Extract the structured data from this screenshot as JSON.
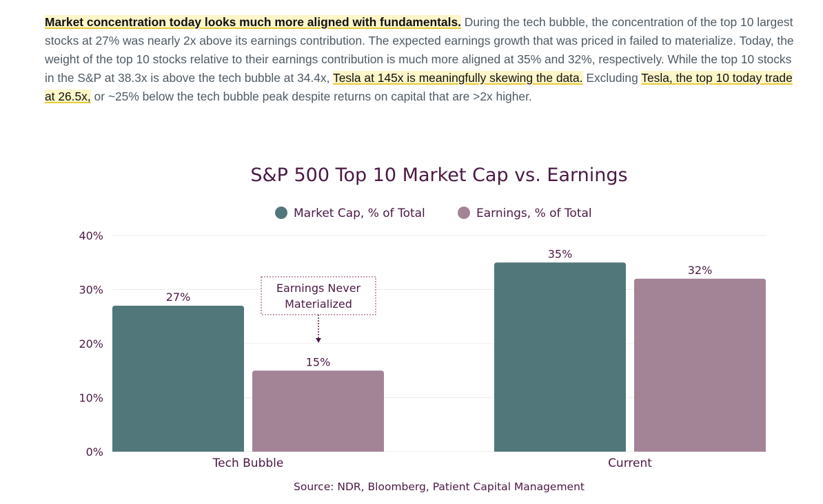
{
  "article": {
    "lead_bold": "Market concentration today looks much more aligned with fundamentals.",
    "text_1": " During the tech bubble, the concentration of the top 10 largest stocks at 27% was nearly 2x above its earnings contribution. The expected earnings growth that was priced in failed to materialize. Today, the weight of the top 10 stocks relative to their earnings contribution is much more aligned at 35% and 32%, respectively. While the top 10 stocks in the S&P at 38.3x is above the tech bubble at 34.4x, ",
    "highlight_1": "Tesla at 145x is meaningfully skewing the data.",
    "text_2": " Excluding ",
    "highlight_2": "Tesla, the top 10 today trade at 26.5x,",
    "text_3": " or ~25% below the tech bubble peak despite returns on capital that are >2x higher."
  },
  "chart_data": {
    "type": "bar",
    "title": "S&P 500 Top 10 Market Cap vs. Earnings",
    "categories": [
      "Tech Bubble",
      "Current"
    ],
    "series": [
      {
        "name": "Market Cap, % of Total",
        "values": [
          27,
          35
        ],
        "color": "#52777a"
      },
      {
        "name": "Earnings, % of Total",
        "values": [
          15,
          32
        ],
        "color": "#a38497"
      }
    ],
    "ylim": [
      0,
      40
    ],
    "yticks": [
      "0%",
      "10%",
      "20%",
      "30%",
      "40%"
    ],
    "ytick_values": [
      0,
      10,
      20,
      30,
      40
    ],
    "data_labels": [
      [
        "27%",
        "35%"
      ],
      [
        "15%",
        "32%"
      ]
    ],
    "legend": "top-center",
    "grid": true,
    "annotation": {
      "lines": [
        "Earnings Never",
        "Materialized"
      ]
    },
    "source": "Source: NDR, Bloomberg, Patient Capital Management"
  },
  "colors": {
    "text": "#4a1942",
    "gridline": "#ececec",
    "highlight": "#e7cb3c"
  }
}
